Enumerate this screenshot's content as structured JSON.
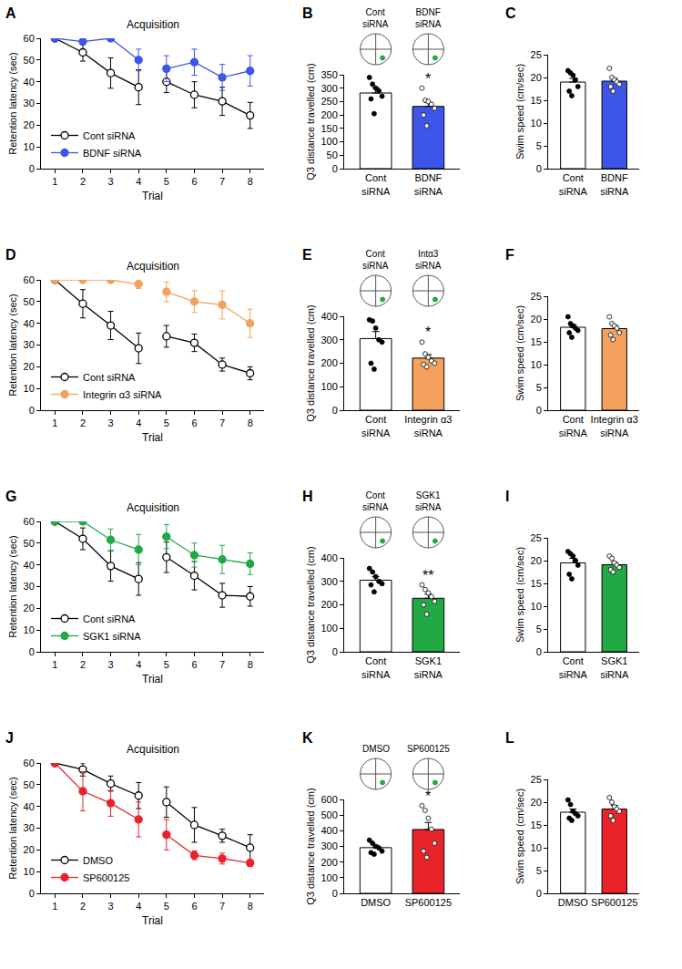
{
  "chart_data": [
    {
      "panel": "A",
      "type": "line",
      "title": "Acquisition",
      "xlabel": "Trial",
      "ylabel": "Retention latency (sec)",
      "x": [
        1,
        2,
        3,
        4,
        null,
        5,
        6,
        7,
        8
      ],
      "xlim": [
        0.5,
        8.5
      ],
      "xticks": [
        1,
        2,
        3,
        4,
        5,
        6,
        7,
        8
      ],
      "ylim": [
        0,
        60
      ],
      "yticks": [
        0,
        10,
        20,
        30,
        40,
        50,
        60
      ],
      "grid": false,
      "legend": "lower left",
      "series": [
        {
          "name": "Cont siRNA",
          "color": "#000000",
          "marker": "open circle",
          "values": [
            60,
            53.5,
            44,
            37.5,
            null,
            40,
            34,
            31,
            24.5
          ],
          "errors": [
            0,
            4,
            7,
            8,
            null,
            5,
            6,
            6.5,
            6
          ]
        },
        {
          "name": "BDNF siRNA",
          "color": "#3d55e8",
          "marker": "filled circle",
          "values": [
            60,
            58.5,
            60,
            50,
            null,
            46,
            49,
            42,
            45
          ],
          "errors": [
            0,
            1.5,
            0,
            5,
            null,
            6,
            6,
            6,
            7
          ]
        }
      ]
    },
    {
      "panel": "B",
      "type": "bar",
      "ylabel": "Q3 distance travelled (cm)",
      "categories": [
        "Cont siRNA",
        "BDNF siRNA"
      ],
      "values": [
        282,
        232
      ],
      "errors": [
        20,
        15
      ],
      "colors": [
        "#ffffff",
        "#3d55e8"
      ],
      "points": [
        [
          340,
          315,
          300,
          290,
          270,
          260,
          205
        ],
        [
          300,
          255,
          250,
          240,
          225,
          200,
          160
        ]
      ],
      "ylim": [
        0,
        350
      ],
      "yticks": [
        0,
        50,
        100,
        150,
        200,
        250,
        300,
        350
      ],
      "grid": false,
      "annotations": [
        {
          "category": "BDNF siRNA",
          "text": "*"
        }
      ],
      "maze_labels": [
        "Cont siRNA",
        "BDNF siRNA"
      ]
    },
    {
      "panel": "C",
      "type": "bar",
      "ylabel": "Swim speed (cm/sec)",
      "categories": [
        "Cont siRNA",
        "BDNF siRNA"
      ],
      "values": [
        19,
        19.2
      ],
      "errors": [
        0.8,
        0.6
      ],
      "colors": [
        "#ffffff",
        "#3d55e8"
      ],
      "points": [
        [
          21.5,
          21,
          20.5,
          19.5,
          18,
          17,
          16
        ],
        [
          22,
          20,
          19.5,
          19,
          18.5,
          18,
          17
        ]
      ],
      "ylim": [
        0,
        25
      ],
      "yticks": [
        0,
        5,
        10,
        15,
        20,
        25
      ],
      "grid": false
    },
    {
      "panel": "D",
      "type": "line",
      "title": "Acquisition",
      "xlabel": "Trial",
      "ylabel": "Retention latency (sec)",
      "x": [
        1,
        2,
        3,
        4,
        null,
        5,
        6,
        7,
        8
      ],
      "xlim": [
        0.5,
        8.5
      ],
      "xticks": [
        1,
        2,
        3,
        4,
        5,
        6,
        7,
        8
      ],
      "ylim": [
        0,
        60
      ],
      "yticks": [
        0,
        10,
        20,
        30,
        40,
        50,
        60
      ],
      "grid": false,
      "legend": "lower left",
      "series": [
        {
          "name": "Cont siRNA",
          "color": "#000000",
          "marker": "open circle",
          "values": [
            60,
            49,
            39,
            28.5,
            null,
            34,
            31,
            21,
            17
          ],
          "errors": [
            0,
            6.5,
            6.5,
            7,
            null,
            5,
            4,
            3,
            3
          ]
        },
        {
          "name": "Integrin α3 siRNA",
          "color": "#f4a15d",
          "marker": "filled circle",
          "values": [
            60,
            60,
            60,
            58,
            null,
            54.5,
            50,
            48.5,
            40
          ],
          "errors": [
            0,
            0,
            0,
            2,
            null,
            4.5,
            5,
            6.5,
            6.5
          ]
        }
      ]
    },
    {
      "panel": "E",
      "type": "bar",
      "ylabel": "Q3 distance travelled (cm)",
      "categories": [
        "Cont siRNA",
        "Integrin α3 siRNA"
      ],
      "values": [
        305,
        222
      ],
      "errors": [
        30,
        15
      ],
      "colors": [
        "#ffffff",
        "#f4a15d"
      ],
      "points": [
        [
          385,
          380,
          350,
          300,
          290,
          200,
          175
        ],
        [
          290,
          240,
          225,
          210,
          200,
          195,
          185
        ]
      ],
      "ylim": [
        0,
        400
      ],
      "yticks": [
        0,
        100,
        200,
        300,
        400
      ],
      "grid": false,
      "annotations": [
        {
          "category": "Integrin α3 siRNA",
          "text": "*"
        }
      ],
      "maze_labels": [
        "Cont siRNA",
        "Intα3 siRNA"
      ]
    },
    {
      "panel": "F",
      "type": "bar",
      "ylabel": "Swim speed (cm/sec)",
      "categories": [
        "Cont siRNA",
        "Integrin α3 siRNA"
      ],
      "values": [
        18.2,
        17.9
      ],
      "errors": [
        0.6,
        0.7
      ],
      "colors": [
        "#ffffff",
        "#f4a15d"
      ],
      "points": [
        [
          20.5,
          19,
          18.5,
          18,
          17.5,
          17,
          16
        ],
        [
          20.5,
          19,
          18.5,
          18,
          17,
          16.5,
          15.5
        ]
      ],
      "ylim": [
        0,
        25
      ],
      "yticks": [
        0,
        5,
        10,
        15,
        20,
        25
      ],
      "grid": false
    },
    {
      "panel": "G",
      "type": "line",
      "title": "Acquisition",
      "xlabel": "Trial",
      "ylabel": "Retention latency (sec)",
      "x": [
        1,
        2,
        3,
        4,
        null,
        5,
        6,
        7,
        8
      ],
      "xlim": [
        0.5,
        8.5
      ],
      "xticks": [
        1,
        2,
        3,
        4,
        5,
        6,
        7,
        8
      ],
      "ylim": [
        0,
        60
      ],
      "yticks": [
        0,
        10,
        20,
        30,
        40,
        50,
        60
      ],
      "grid": false,
      "legend": "lower left",
      "series": [
        {
          "name": "Cont siRNA",
          "color": "#000000",
          "marker": "open circle",
          "values": [
            60,
            52,
            39.5,
            33.5,
            null,
            43.5,
            35,
            26,
            25.5
          ],
          "errors": [
            0,
            5,
            7,
            7.5,
            null,
            7,
            6.5,
            5.5,
            4.5
          ]
        },
        {
          "name": "SGK1 siRNA",
          "color": "#22a845",
          "marker": "filled circle",
          "values": [
            60,
            60,
            51.5,
            47,
            null,
            53,
            44.5,
            42.5,
            40.5
          ],
          "errors": [
            0,
            0,
            5,
            7,
            null,
            5.5,
            5.5,
            6.5,
            5
          ]
        }
      ]
    },
    {
      "panel": "H",
      "type": "bar",
      "ylabel": "Q3 distance travelled (cm)",
      "categories": [
        "Cont siRNA",
        "SGK1 siRNA"
      ],
      "values": [
        305,
        228
      ],
      "errors": [
        15,
        17
      ],
      "colors": [
        "#ffffff",
        "#22a845"
      ],
      "points": [
        [
          355,
          340,
          320,
          300,
          290,
          285,
          255
        ],
        [
          285,
          265,
          250,
          235,
          215,
          200,
          160
        ]
      ],
      "ylim": [
        0,
        400
      ],
      "yticks": [
        0,
        100,
        200,
        300,
        400
      ],
      "grid": false,
      "annotations": [
        {
          "category": "SGK1 siRNA",
          "text": "**"
        }
      ],
      "maze_labels": [
        "Cont siRNA",
        "SGK1 siRNA"
      ]
    },
    {
      "panel": "I",
      "type": "bar",
      "ylabel": "Swim speed (cm/sec)",
      "categories": [
        "Cont siRNA",
        "SGK1 siRNA"
      ],
      "values": [
        19.5,
        19.1
      ],
      "errors": [
        1,
        0.5
      ],
      "colors": [
        "#ffffff",
        "#22a845"
      ],
      "points": [
        [
          22,
          21.5,
          21,
          20,
          19,
          17,
          16
        ],
        [
          21,
          20.5,
          19.5,
          19,
          18.5,
          18,
          17.5
        ]
      ],
      "ylim": [
        0,
        25
      ],
      "yticks": [
        0,
        5,
        10,
        15,
        20,
        25
      ],
      "grid": false
    },
    {
      "panel": "J",
      "type": "line",
      "title": "Acquisition",
      "xlabel": "Trial",
      "ylabel": "Retention latency (sec)",
      "x": [
        1,
        2,
        3,
        4,
        null,
        5,
        6,
        7,
        8
      ],
      "xlim": [
        0.5,
        8.5
      ],
      "xticks": [
        1,
        2,
        3,
        4,
        5,
        6,
        7,
        8
      ],
      "ylim": [
        0,
        60
      ],
      "yticks": [
        0,
        10,
        20,
        30,
        40,
        50,
        60
      ],
      "grid": false,
      "legend": "lower left",
      "series": [
        {
          "name": "DMSO",
          "color": "#000000",
          "marker": "open circle",
          "values": [
            60,
            57,
            50.5,
            45,
            null,
            42,
            31.5,
            26.5,
            21
          ],
          "errors": [
            0,
            3,
            3.5,
            6,
            null,
            7,
            8,
            3,
            6
          ]
        },
        {
          "name": "SP600125",
          "color": "#e8242a",
          "marker": "filled circle",
          "values": [
            60,
            47,
            41.5,
            34,
            null,
            27,
            17.5,
            16,
            14
          ],
          "errors": [
            0,
            9,
            6,
            8,
            null,
            7,
            2,
            2.5,
            1.5
          ]
        }
      ]
    },
    {
      "panel": "K",
      "type": "bar",
      "ylabel": "Q3 distance travelled (cm)",
      "categories": [
        "DMSO",
        "SP600125"
      ],
      "values": [
        292,
        408
      ],
      "errors": [
        15,
        45
      ],
      "colors": [
        "#ffffff",
        "#e8242a"
      ],
      "points": [
        [
          340,
          320,
          300,
          290,
          270,
          260,
          250
        ],
        [
          560,
          530,
          480,
          410,
          320,
          270,
          230
        ]
      ],
      "ylim": [
        0,
        600
      ],
      "yticks": [
        0,
        100,
        200,
        300,
        400,
        500,
        600
      ],
      "grid": false,
      "annotations": [
        {
          "category": "SP600125",
          "text": "*"
        }
      ],
      "maze_labels": [
        "DMSO",
        "SP600125"
      ]
    },
    {
      "panel": "L",
      "type": "bar",
      "ylabel": "Swim speed (cm/sec)",
      "categories": [
        "DMSO",
        "SP600125"
      ],
      "values": [
        17.8,
        18.5
      ],
      "errors": [
        0.7,
        0.8
      ],
      "colors": [
        "#ffffff",
        "#e8242a"
      ],
      "points": [
        [
          20.5,
          19.5,
          18,
          17.5,
          17,
          16.5,
          16
        ],
        [
          21,
          20,
          19,
          18.5,
          18,
          17,
          16
        ]
      ],
      "ylim": [
        0,
        25
      ],
      "yticks": [
        0,
        5,
        10,
        15,
        20,
        25
      ],
      "grid": false
    }
  ]
}
